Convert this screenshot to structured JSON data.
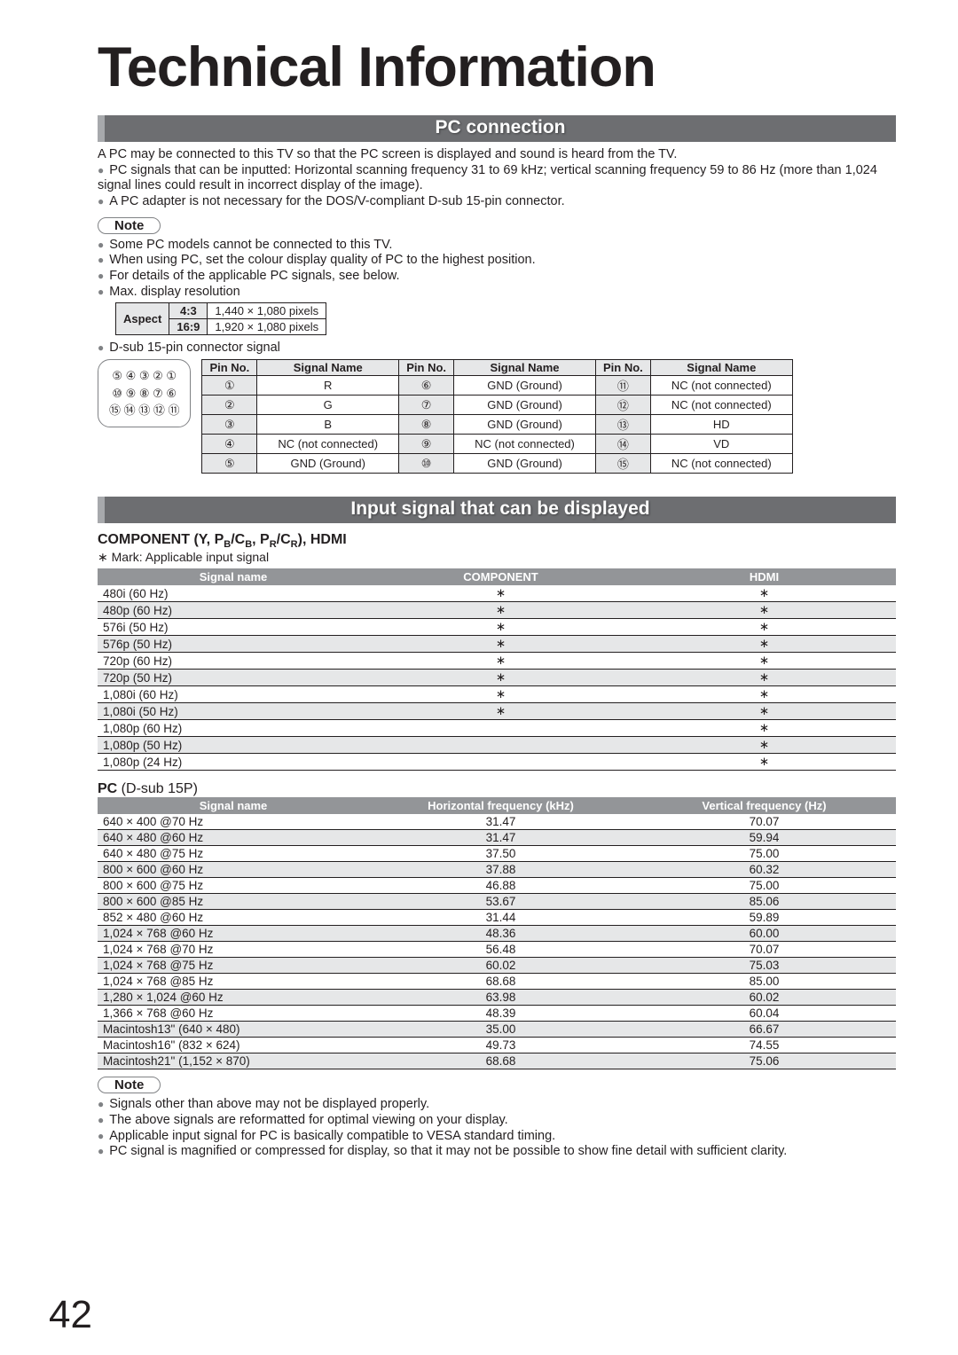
{
  "page": {
    "title": "Technical Information",
    "number": "42"
  },
  "section_pc": {
    "bar": "PC connection",
    "intro": "A PC may be connected to this TV so that the PC screen is displayed and sound is heard from the TV.",
    "bullets": [
      "PC signals that can be inputted: Horizontal scanning frequency 31 to 69 kHz; vertical scanning frequency 59 to 86 Hz (more than 1,024 signal lines could result in incorrect display of the image).",
      "A PC adapter is not necessary for the DOS/V-compliant D-sub 15-pin connector."
    ],
    "note_label": "Note",
    "note_bullets": [
      "Some PC models cannot be connected to this TV.",
      "When using PC, set the colour display quality of PC to the highest position.",
      "For details of the applicable PC signals, see below.",
      "Max. display resolution"
    ],
    "aspect_table": {
      "label": "Aspect",
      "rows": [
        [
          "4:3",
          "1,440 × 1,080 pixels"
        ],
        [
          "16:9",
          "1,920 × 1,080 pixels"
        ]
      ]
    },
    "dsub_label": "D-sub 15-pin connector signal",
    "pin_diagram": {
      "row1": "⑤ ④ ③ ② ①",
      "row2": "⑩ ⑨ ⑧ ⑦ ⑥",
      "row3": "⑮ ⑭ ⑬ ⑫ ⑪"
    },
    "pin_table": {
      "headers": [
        "Pin No.",
        "Signal Name",
        "Pin No.",
        "Signal Name",
        "Pin No.",
        "Signal Name"
      ],
      "rows": [
        [
          "①",
          "R",
          "⑥",
          "GND (Ground)",
          "⑪",
          "NC (not connected)"
        ],
        [
          "②",
          "G",
          "⑦",
          "GND (Ground)",
          "⑫",
          "NC (not connected)"
        ],
        [
          "③",
          "B",
          "⑧",
          "GND (Ground)",
          "⑬",
          "HD"
        ],
        [
          "④",
          "NC (not connected)",
          "⑨",
          "NC (not connected)",
          "⑭",
          "VD"
        ],
        [
          "⑤",
          "GND (Ground)",
          "⑩",
          "GND (Ground)",
          "⑮",
          "NC (not connected)"
        ]
      ]
    }
  },
  "section_input": {
    "bar": "Input signal that can be displayed",
    "component_heading_pre": "COMPONENT",
    "component_heading_mid": " (Y, P",
    "component_heading_b": "B",
    "component_heading_mid2": "/C",
    "component_heading_b2": "B",
    "component_heading_mid3": ", P",
    "component_heading_r": "R",
    "component_heading_mid4": "/C",
    "component_heading_r2": "R",
    "component_heading_post": "), HDMI",
    "mark_text": "∗ Mark: Applicable input signal",
    "comp_table": {
      "headers": [
        "Signal name",
        "COMPONENT",
        "HDMI"
      ],
      "rows": [
        {
          "n": "480i (60 Hz)",
          "c": "∗",
          "h": "∗",
          "alt": false
        },
        {
          "n": "480p (60 Hz)",
          "c": "∗",
          "h": "∗",
          "alt": true
        },
        {
          "n": "576i (50 Hz)",
          "c": "∗",
          "h": "∗",
          "alt": false
        },
        {
          "n": "576p (50 Hz)",
          "c": "∗",
          "h": "∗",
          "alt": true
        },
        {
          "n": "720p (60 Hz)",
          "c": "∗",
          "h": "∗",
          "alt": false
        },
        {
          "n": "720p (50 Hz)",
          "c": "∗",
          "h": "∗",
          "alt": true
        },
        {
          "n": "1,080i (60 Hz)",
          "c": "∗",
          "h": "∗",
          "alt": false
        },
        {
          "n": "1,080i (50 Hz)",
          "c": "∗",
          "h": "∗",
          "alt": true
        },
        {
          "n": "1,080p (60 Hz)",
          "c": "",
          "h": "∗",
          "alt": false
        },
        {
          "n": "1,080p (50 Hz)",
          "c": "",
          "h": "∗",
          "alt": true
        },
        {
          "n": "1,080p (24 Hz)",
          "c": "",
          "h": "∗",
          "alt": false
        }
      ]
    },
    "pc_heading": "PC",
    "pc_heading_sub": " (D-sub 15P)",
    "pc_table": {
      "headers": [
        "Signal name",
        "Horizontal frequency (kHz)",
        "Vertical frequency (Hz)"
      ],
      "rows": [
        {
          "n": "640 × 400 @70 Hz",
          "h": "31.47",
          "v": "70.07",
          "alt": false
        },
        {
          "n": "640 × 480 @60 Hz",
          "h": "31.47",
          "v": "59.94",
          "alt": true
        },
        {
          "n": "640 × 480 @75 Hz",
          "h": "37.50",
          "v": "75.00",
          "alt": false
        },
        {
          "n": "800 × 600 @60 Hz",
          "h": "37.88",
          "v": "60.32",
          "alt": true
        },
        {
          "n": "800 × 600 @75 Hz",
          "h": "46.88",
          "v": "75.00",
          "alt": false
        },
        {
          "n": "800 × 600 @85 Hz",
          "h": "53.67",
          "v": "85.06",
          "alt": true
        },
        {
          "n": "852 × 480 @60 Hz",
          "h": "31.44",
          "v": "59.89",
          "alt": false
        },
        {
          "n": "1,024 × 768 @60 Hz",
          "h": "48.36",
          "v": "60.00",
          "alt": true
        },
        {
          "n": "1,024 × 768 @70 Hz",
          "h": "56.48",
          "v": "70.07",
          "alt": false
        },
        {
          "n": "1,024 × 768 @75 Hz",
          "h": "60.02",
          "v": "75.03",
          "alt": true
        },
        {
          "n": "1,024 × 768 @85 Hz",
          "h": "68.68",
          "v": "85.00",
          "alt": false
        },
        {
          "n": "1,280 × 1,024 @60 Hz",
          "h": "63.98",
          "v": "60.02",
          "alt": true
        },
        {
          "n": "1,366 × 768 @60 Hz",
          "h": "48.39",
          "v": "60.04",
          "alt": false
        },
        {
          "n": "Macintosh13\" (640 × 480)",
          "h": "35.00",
          "v": "66.67",
          "alt": true
        },
        {
          "n": "Macintosh16\" (832 × 624)",
          "h": "49.73",
          "v": "74.55",
          "alt": false
        },
        {
          "n": "Macintosh21\" (1,152 × 870)",
          "h": "68.68",
          "v": "75.06",
          "alt": true
        }
      ]
    },
    "note_label": "Note",
    "note_bullets": [
      "Signals other than above may not be displayed properly.",
      "The above signals are reformatted for optimal viewing on your display.",
      "Applicable input signal for PC is basically compatible to VESA standard timing.",
      "PC signal is magnified or compressed for display, so that it may not be possible to show fine detail with sufficient clarity."
    ]
  }
}
